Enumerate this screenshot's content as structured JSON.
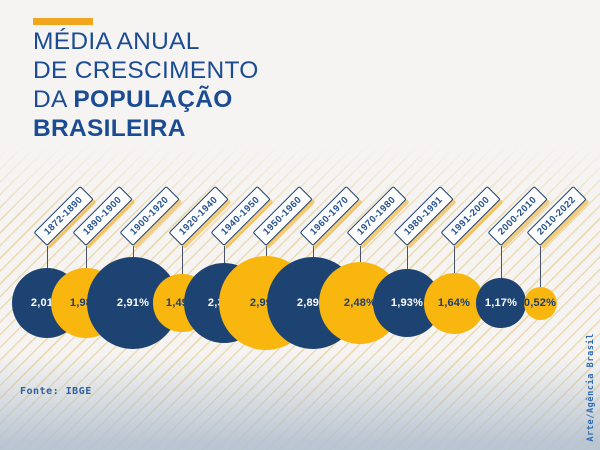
{
  "header": {
    "accent_color": "#f2a61d",
    "title_line1": "MÉDIA ANUAL",
    "title_line2": "DE CRESCIMENTO",
    "title_line3_regular": "DA",
    "title_line3_bold": "POPULAÇÃO",
    "title_line4_bold": "BRASILEIRA",
    "title_color": "#1b4c93"
  },
  "chart_data": {
    "type": "scatter",
    "variant": "proportional-circles",
    "title": "Média anual de crescimento da população brasileira",
    "unit": "% ao ano",
    "legend": "none",
    "categories": [
      "1872-1890",
      "1890-1900",
      "1900-1920",
      "1920-1940",
      "1940-1950",
      "1950-1960",
      "1960-1970",
      "1970-1980",
      "1980-1991",
      "1991-2000",
      "2000-2010",
      "2010-2022"
    ],
    "values": [
      2.01,
      1.98,
      2.91,
      1.49,
      2.39,
      2.99,
      2.89,
      2.48,
      1.93,
      1.64,
      1.17,
      0.52
    ],
    "points": [
      {
        "period": "1872-1890",
        "label": "2,01%",
        "value": 2.01,
        "color": "blue"
      },
      {
        "period": "1890-1900",
        "label": "1,98%",
        "value": 1.98,
        "color": "yellow"
      },
      {
        "period": "1900-1920",
        "label": "2,91%",
        "value": 2.91,
        "color": "blue"
      },
      {
        "period": "1920-1940",
        "label": "1,49%",
        "value": 1.49,
        "color": "yellow"
      },
      {
        "period": "1940-1950",
        "label": "2,39%",
        "value": 2.39,
        "color": "blue"
      },
      {
        "period": "1950-1960",
        "label": "2,99%",
        "value": 2.99,
        "color": "yellow"
      },
      {
        "period": "1960-1970",
        "label": "2,89%",
        "value": 2.89,
        "color": "blue"
      },
      {
        "period": "1970-1980",
        "label": "2,48%",
        "value": 2.48,
        "color": "yellow"
      },
      {
        "period": "1980-1991",
        "label": "1,93%",
        "value": 1.93,
        "color": "blue"
      },
      {
        "period": "1991-2000",
        "label": "1,64%",
        "value": 1.64,
        "color": "yellow"
      },
      {
        "period": "2000-2010",
        "label": "1,17%",
        "value": 1.17,
        "color": "blue"
      },
      {
        "period": "2010-2022",
        "label": "0,52%",
        "value": 0.52,
        "color": "yellow"
      }
    ],
    "palette": {
      "blue": "#1d4373",
      "yellow": "#f8b60f",
      "text_on_blue": "#ffffff",
      "text_on_yellow": "#1c3f6e",
      "label_box_border": "#1e4374",
      "label_box_text": "#24508f",
      "connector": "#45546e"
    }
  },
  "footer": {
    "source": "Fonte: IBGE",
    "credit": "Arte/Agência Brasil"
  }
}
